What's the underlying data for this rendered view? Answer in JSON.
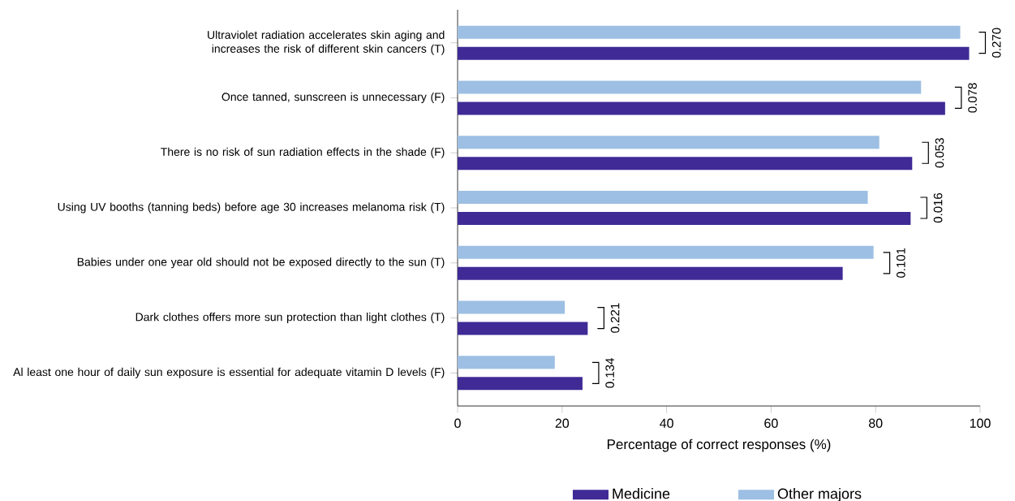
{
  "chart_data": {
    "type": "bar",
    "orientation": "horizontal",
    "categories": [
      "Ultraviolet radiation accelerates skin aging and increases the risk of different skin cancers (T)",
      "Once tanned, sunscreen is unnecessary (F)",
      "There is no risk of sun radiation effects in the shade (F)",
      "Using UV booths (tanning beds) before age 30 increases melanoma risk (T)",
      "Babies under one year old should not be exposed directly to the sun (T)",
      "Dark clothes offers more sun protection than light clothes (T)",
      "Al least one hour of daily sun exposure is essential for adequate vitamin D levels (F)"
    ],
    "series": [
      {
        "name": "Medicine",
        "color": "#3f2a96",
        "values": [
          97.9,
          93.3,
          87.0,
          86.7,
          73.7,
          24.9,
          23.9
        ]
      },
      {
        "name": "Other majors",
        "color": "#9dbfe3",
        "values": [
          96.2,
          88.7,
          80.7,
          78.5,
          79.6,
          20.5,
          18.6
        ]
      }
    ],
    "xlabel": "Percentage of correct responses (%)",
    "xlim": [
      0,
      100
    ],
    "xticks": [
      0,
      20,
      40,
      60,
      80,
      100
    ],
    "legend": "bottom",
    "grid": false,
    "annotations": [
      "0.270",
      "0.078",
      "0.053",
      "0.016",
      "0.101",
      "0.221",
      "0.134"
    ]
  }
}
